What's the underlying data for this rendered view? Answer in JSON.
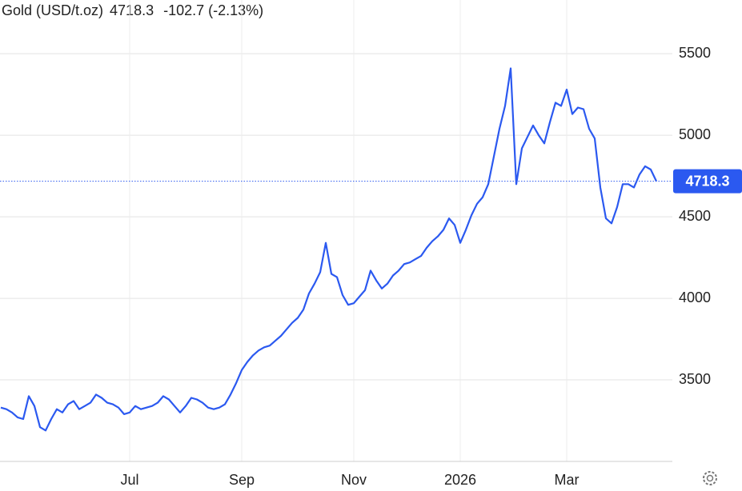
{
  "chart_data": {
    "type": "line",
    "series": [
      {
        "name": "Gold (USD/t.oz)",
        "color": "#2b59f0",
        "values": [
          3330,
          3320,
          3300,
          3270,
          3260,
          3400,
          3340,
          3210,
          3190,
          3260,
          3320,
          3300,
          3350,
          3370,
          3320,
          3340,
          3360,
          3410,
          3390,
          3360,
          3350,
          3330,
          3290,
          3300,
          3340,
          3320,
          3330,
          3340,
          3360,
          3400,
          3380,
          3340,
          3300,
          3340,
          3390,
          3380,
          3360,
          3330,
          3320,
          3330,
          3350,
          3410,
          3480,
          3560,
          3610,
          3650,
          3680,
          3700,
          3710,
          3740,
          3770,
          3810,
          3850,
          3880,
          3930,
          4030,
          4090,
          4160,
          4340,
          4150,
          4130,
          4020,
          3960,
          3970,
          4010,
          4050,
          4170,
          4110,
          4060,
          4090,
          4140,
          4170,
          4210,
          4220,
          4240,
          4260,
          4310,
          4350,
          4380,
          4420,
          4490,
          4450,
          4340,
          4420,
          4510,
          4580,
          4620,
          4700,
          4870,
          5040,
          5180,
          5410,
          4700,
          4920,
          4990,
          5060,
          5000,
          4950,
          5080,
          5200,
          5180,
          5280,
          5130,
          5170,
          5160,
          5040,
          4980,
          4680,
          4490,
          4460,
          4560,
          4700,
          4700,
          4680,
          4760,
          4810,
          4790,
          4718.3
        ]
      }
    ],
    "categories": [
      null,
      null,
      null,
      null,
      null,
      null,
      null,
      null,
      null,
      null,
      null,
      null,
      null,
      null,
      null,
      null,
      null,
      null,
      null,
      null,
      null,
      null,
      null,
      "Jul",
      null,
      null,
      null,
      null,
      null,
      null,
      null,
      null,
      null,
      null,
      null,
      null,
      null,
      null,
      null,
      null,
      null,
      null,
      null,
      "Sep",
      null,
      null,
      null,
      null,
      null,
      null,
      null,
      null,
      null,
      null,
      null,
      null,
      null,
      null,
      null,
      null,
      null,
      null,
      null,
      "Nov",
      null,
      null,
      null,
      null,
      null,
      null,
      null,
      null,
      null,
      null,
      null,
      null,
      null,
      null,
      null,
      null,
      null,
      null,
      "2026",
      null,
      null,
      null,
      null,
      null,
      null,
      null,
      null,
      null,
      null,
      null,
      null,
      null,
      null,
      null,
      null,
      null,
      null,
      "Mar",
      null,
      null,
      null,
      null,
      null,
      null,
      null,
      null,
      null,
      null,
      null,
      null,
      null,
      null,
      null,
      null
    ],
    "price": 4718.3,
    "price_color": "#2b59f0",
    "change": "-102.7 (-2.13%)",
    "change_color": "#e8413c",
    "ylim": [
      3000,
      5800
    ],
    "yticks": [
      3500,
      4000,
      4500,
      5000,
      5500
    ],
    "grid": true
  }
}
